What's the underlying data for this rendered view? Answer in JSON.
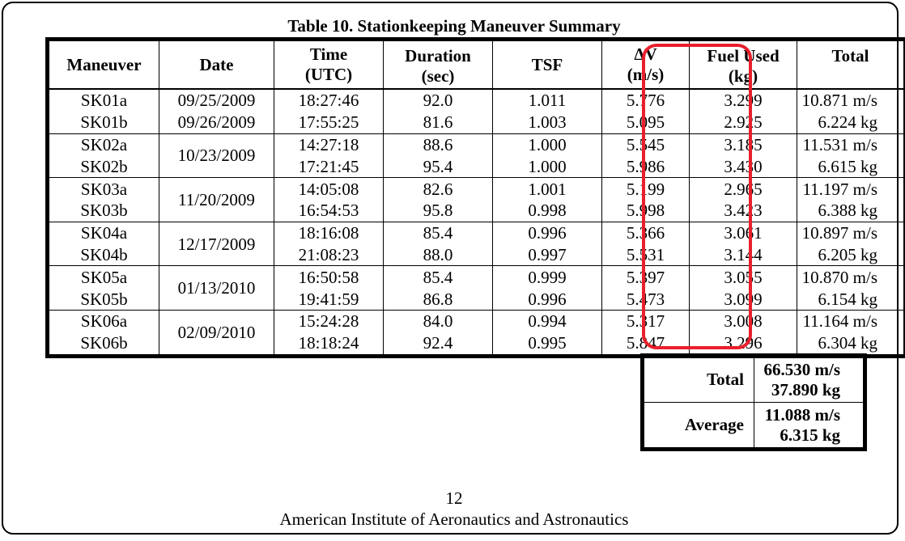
{
  "caption": "Table 10. Stationkeeping Maneuver Summary",
  "headers": {
    "maneuver": "Maneuver",
    "date": "Date",
    "time": "Time",
    "time_unit": "(UTC)",
    "duration": "Duration",
    "duration_unit": "(sec)",
    "tsf": "TSF",
    "dv": "ΔV",
    "dv_unit": "(m/s)",
    "fuel": "Fuel Used",
    "fuel_unit": "(kg)",
    "total": "Total"
  },
  "groups": [
    {
      "rows": [
        {
          "maneuver": "SK01a",
          "date": "09/25/2009",
          "time": "18:27:46",
          "duration": "92.0",
          "tsf": "1.011",
          "dv": "5.776",
          "fuel": "3.299",
          "total": "10.871 m/s"
        },
        {
          "maneuver": "SK01b",
          "date": "09/26/2009",
          "time": "17:55:25",
          "duration": "81.6",
          "tsf": "1.003",
          "dv": "5.095",
          "fuel": "2.925",
          "total": "6.224 kg"
        }
      ]
    },
    {
      "date": "10/23/2009",
      "rows": [
        {
          "maneuver": "SK02a",
          "time": "14:27:18",
          "duration": "88.6",
          "tsf": "1.000",
          "dv": "5.545",
          "fuel": "3.185",
          "total": "11.531 m/s"
        },
        {
          "maneuver": "SK02b",
          "time": "17:21:45",
          "duration": "95.4",
          "tsf": "1.000",
          "dv": "5.986",
          "fuel": "3.430",
          "total": "6.615 kg"
        }
      ]
    },
    {
      "date": "11/20/2009",
      "rows": [
        {
          "maneuver": "SK03a",
          "time": "14:05:08",
          "duration": "82.6",
          "tsf": "1.001",
          "dv": "5.199",
          "fuel": "2.965",
          "total": "11.197 m/s"
        },
        {
          "maneuver": "SK03b",
          "time": "16:54:53",
          "duration": "95.8",
          "tsf": "0.998",
          "dv": "5.998",
          "fuel": "3.423",
          "total": "6.388 kg"
        }
      ]
    },
    {
      "date": "12/17/2009",
      "rows": [
        {
          "maneuver": "SK04a",
          "time": "18:16:08",
          "duration": "85.4",
          "tsf": "0.996",
          "dv": "5.366",
          "fuel": "3.061",
          "total": "10.897 m/s"
        },
        {
          "maneuver": "SK04b",
          "time": "21:08:23",
          "duration": "88.0",
          "tsf": "0.997",
          "dv": "5.531",
          "fuel": "3.144",
          "total": "6.205 kg"
        }
      ]
    },
    {
      "date": "01/13/2010",
      "rows": [
        {
          "maneuver": "SK05a",
          "time": "16:50:58",
          "duration": "85.4",
          "tsf": "0.999",
          "dv": "5.397",
          "fuel": "3.055",
          "total": "10.870 m/s"
        },
        {
          "maneuver": "SK05b",
          "time": "19:41:59",
          "duration": "86.8",
          "tsf": "0.996",
          "dv": "5.473",
          "fuel": "3.099",
          "total": "6.154 kg"
        }
      ]
    },
    {
      "date": "02/09/2010",
      "rows": [
        {
          "maneuver": "SK06a",
          "time": "15:24:28",
          "duration": "84.0",
          "tsf": "0.994",
          "dv": "5.317",
          "fuel": "3.008",
          "total": "11.164 m/s"
        },
        {
          "maneuver": "SK06b",
          "time": "18:18:24",
          "duration": "92.4",
          "tsf": "0.995",
          "dv": "5.847",
          "fuel": "3.296",
          "total": "6.304 kg"
        }
      ]
    }
  ],
  "summary": {
    "total_label": "Total",
    "total_dv": "66.530 m/s",
    "total_fuel": "37.890 kg",
    "average_label": "Average",
    "average_dv": "11.088 m/s",
    "average_fuel": "6.315 kg"
  },
  "highlight_color": "#e8202c",
  "footer": {
    "page_number": "12",
    "organization": "American Institute of Aeronautics and Astronautics"
  }
}
